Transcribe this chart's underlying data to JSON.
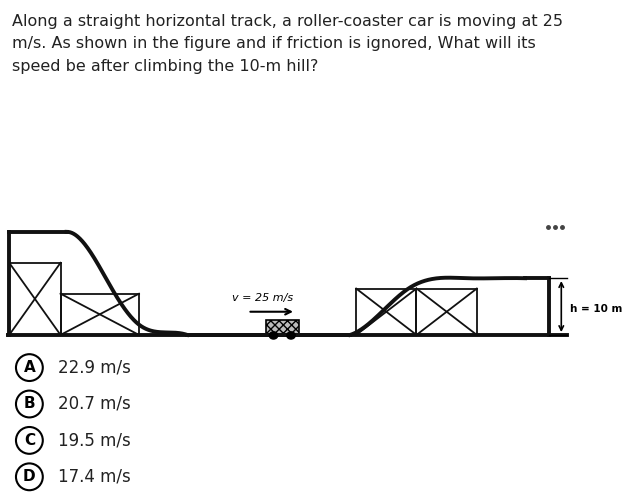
{
  "question_text": "Along a straight horizontal track, a roller-coaster car is moving at 25\nm/s. As shown in the figure and if friction is ignored, What will its\nspeed be after climbing the 10-m hill?",
  "question_fontsize": 11.5,
  "question_color": "#222222",
  "figure_bg": "#ffffff",
  "answer_bg": "#f2f2f2",
  "answers": [
    {
      "letter": "A",
      "text": "22.9 m/s"
    },
    {
      "letter": "B",
      "text": "20.7 m/s"
    },
    {
      "letter": "C",
      "text": "19.5 m/s"
    },
    {
      "letter": "D",
      "text": "17.4 m/s"
    }
  ],
  "v_label": "v = 25 m/s",
  "h_label": "h = 10 m",
  "dots_color": "#444444",
  "track_color": "#111111",
  "support_color": "#111111",
  "track_lw": 2.8,
  "support_lw": 1.3
}
